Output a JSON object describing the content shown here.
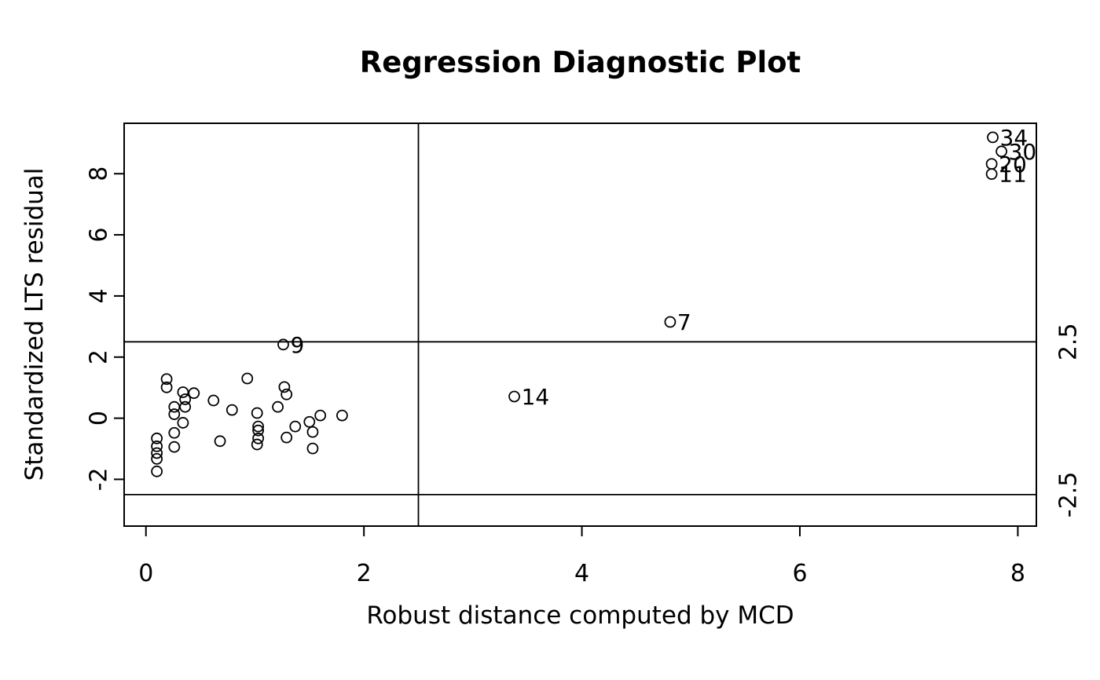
{
  "colors": {
    "background": "#ffffff",
    "foreground": "#000000"
  },
  "chart_data": {
    "type": "scatter",
    "title": "Regression Diagnostic Plot",
    "xlabel": "Robust distance computed by MCD",
    "ylabel": "Standardized LTS residual",
    "xlim": [
      -0.2,
      8.17
    ],
    "ylim": [
      -3.53,
      9.65
    ],
    "x_ticks": [
      0,
      2,
      4,
      6,
      8
    ],
    "y_ticks": [
      -2,
      0,
      2,
      4,
      6,
      8
    ],
    "grid": false,
    "legend": null,
    "marker": "open-circle",
    "cutoffs": {
      "vertical_x": 2.5,
      "horizontal_y": [
        2.5,
        -2.5
      ],
      "right_axis_labels": [
        "2.5",
        "-2.5"
      ]
    },
    "labeled_points": [
      {
        "label": "34",
        "x": 7.77,
        "y": 9.19
      },
      {
        "label": "30",
        "x": 7.85,
        "y": 8.73
      },
      {
        "label": "20",
        "x": 7.76,
        "y": 8.32
      },
      {
        "label": "11",
        "x": 7.76,
        "y": 7.99
      },
      {
        "label": "7",
        "x": 4.81,
        "y": 3.15
      },
      {
        "label": "14",
        "x": 3.38,
        "y": 0.71
      },
      {
        "label": "9",
        "x": 1.26,
        "y": 2.41
      }
    ],
    "points": [
      [
        0.19,
        1.28
      ],
      [
        0.19,
        1.01
      ],
      [
        0.34,
        0.85
      ],
      [
        0.36,
        0.62
      ],
      [
        0.44,
        0.82
      ],
      [
        0.26,
        0.37
      ],
      [
        0.36,
        0.37
      ],
      [
        0.26,
        0.13
      ],
      [
        0.34,
        -0.15
      ],
      [
        0.26,
        -0.48
      ],
      [
        0.1,
        -0.66
      ],
      [
        0.1,
        -0.92
      ],
      [
        0.1,
        -1.14
      ],
      [
        0.1,
        -1.33
      ],
      [
        0.26,
        -0.94
      ],
      [
        0.1,
        -1.74
      ],
      [
        0.93,
        1.3
      ],
      [
        1.27,
        1.02
      ],
      [
        1.29,
        0.78
      ],
      [
        0.62,
        0.58
      ],
      [
        0.79,
        0.27
      ],
      [
        1.02,
        0.17
      ],
      [
        1.21,
        0.37
      ],
      [
        1.03,
        -0.27
      ],
      [
        1.03,
        -0.4
      ],
      [
        1.03,
        -0.66
      ],
      [
        1.02,
        -0.86
      ],
      [
        0.68,
        -0.75
      ],
      [
        1.29,
        -0.63
      ],
      [
        1.37,
        -0.27
      ],
      [
        1.5,
        -0.12
      ],
      [
        1.6,
        0.09
      ],
      [
        1.53,
        -0.45
      ],
      [
        1.53,
        -0.99
      ],
      [
        1.8,
        0.09
      ]
    ]
  }
}
